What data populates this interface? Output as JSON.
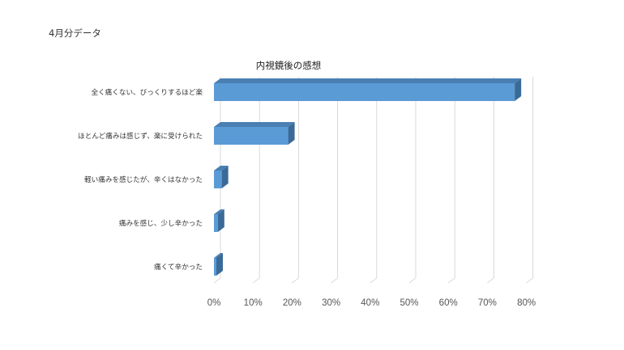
{
  "page": {
    "heading": "4月分データ"
  },
  "chart_data": {
    "type": "bar",
    "orientation": "horizontal",
    "style": "3d",
    "title": "内視鏡後の感想",
    "categories": [
      "全く痛くない、びっくりするほど楽",
      "ほとんど痛みは感じず、楽に受けられた",
      "軽い痛みを感じたが、辛くはなかった",
      "痛みを感じ、少し辛かった",
      "痛くて辛かった"
    ],
    "values": [
      77,
      19,
      2,
      1,
      0
    ],
    "value_unit": "%",
    "xlim": [
      0,
      80
    ],
    "x_ticks": [
      "0%",
      "10%",
      "20%",
      "30%",
      "40%",
      "50%",
      "60%",
      "70%",
      "80%"
    ],
    "grid": true,
    "legend": "none",
    "colors": {
      "bar_front": "#5b9bd5",
      "bar_top": "#4a7fb3",
      "bar_side": "#3a6a98",
      "grid": "#d9d9d9"
    }
  }
}
